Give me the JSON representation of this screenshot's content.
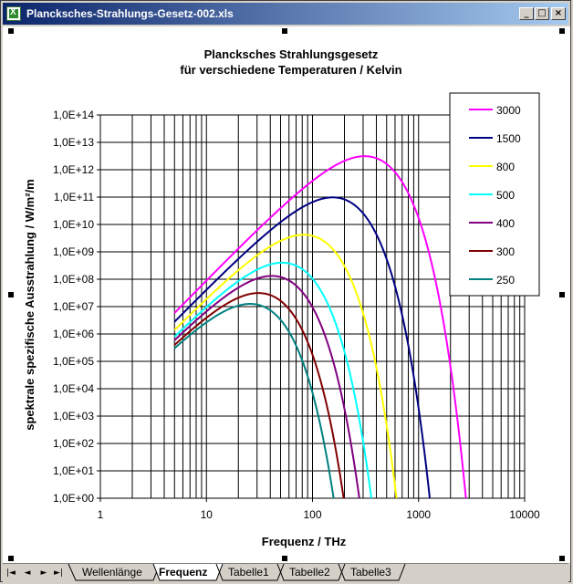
{
  "window": {
    "title": "Planck­sches-Strahlungs-Gesetz-002.xls",
    "minimize_label": "_",
    "maximize_label": "□",
    "close_label": "×"
  },
  "sheet_tabs": {
    "nav": [
      "|◄",
      "◄",
      "►",
      "►|"
    ],
    "tabs": [
      {
        "label": "Wellenlänge",
        "active": false
      },
      {
        "label": "Frequenz",
        "active": true
      },
      {
        "label": "Tabelle1",
        "active": false
      },
      {
        "label": "Tabelle2",
        "active": false
      },
      {
        "label": "Tabelle3",
        "active": false
      }
    ]
  },
  "chart_data": {
    "type": "line",
    "title": "Plancksches Strahlungsgesetz",
    "subtitle": "für verschiedene Temperaturen / Kelvin",
    "xlabel": "Frequenz / THz",
    "ylabel": "spektrale spezifische Ausstrahlung / W/m²/m",
    "x_scale": "log",
    "y_scale": "log",
    "xlim": [
      1,
      10000
    ],
    "ylim": [
      1,
      100000000000000
    ],
    "x_ticks": [
      "1",
      "10",
      "100",
      "1000",
      "10000"
    ],
    "y_ticks": [
      "1,0E+00",
      "1,0E+01",
      "1,0E+02",
      "1,0E+03",
      "1,0E+04",
      "1,0E+05",
      "1,0E+06",
      "1,0E+07",
      "1,0E+08",
      "1,0E+09",
      "1,0E+10",
      "1,0E+11",
      "1,0E+12",
      "1,0E+13",
      "1,0E+14"
    ],
    "grid": true,
    "legend": "top-right",
    "x_start": 5,
    "series": [
      {
        "name": "3000",
        "color": "#ff00ff",
        "temperature": 3000
      },
      {
        "name": "1500",
        "color": "#000080",
        "temperature": 1500
      },
      {
        "name": "800",
        "color": "#ffff00",
        "temperature": 800
      },
      {
        "name": "500",
        "color": "#00ffff",
        "temperature": 500
      },
      {
        "name": "400",
        "color": "#800080",
        "temperature": 400
      },
      {
        "name": "300",
        "color": "#800000",
        "temperature": 300
      },
      {
        "name": "250",
        "color": "#008080",
        "temperature": 250
      }
    ]
  }
}
